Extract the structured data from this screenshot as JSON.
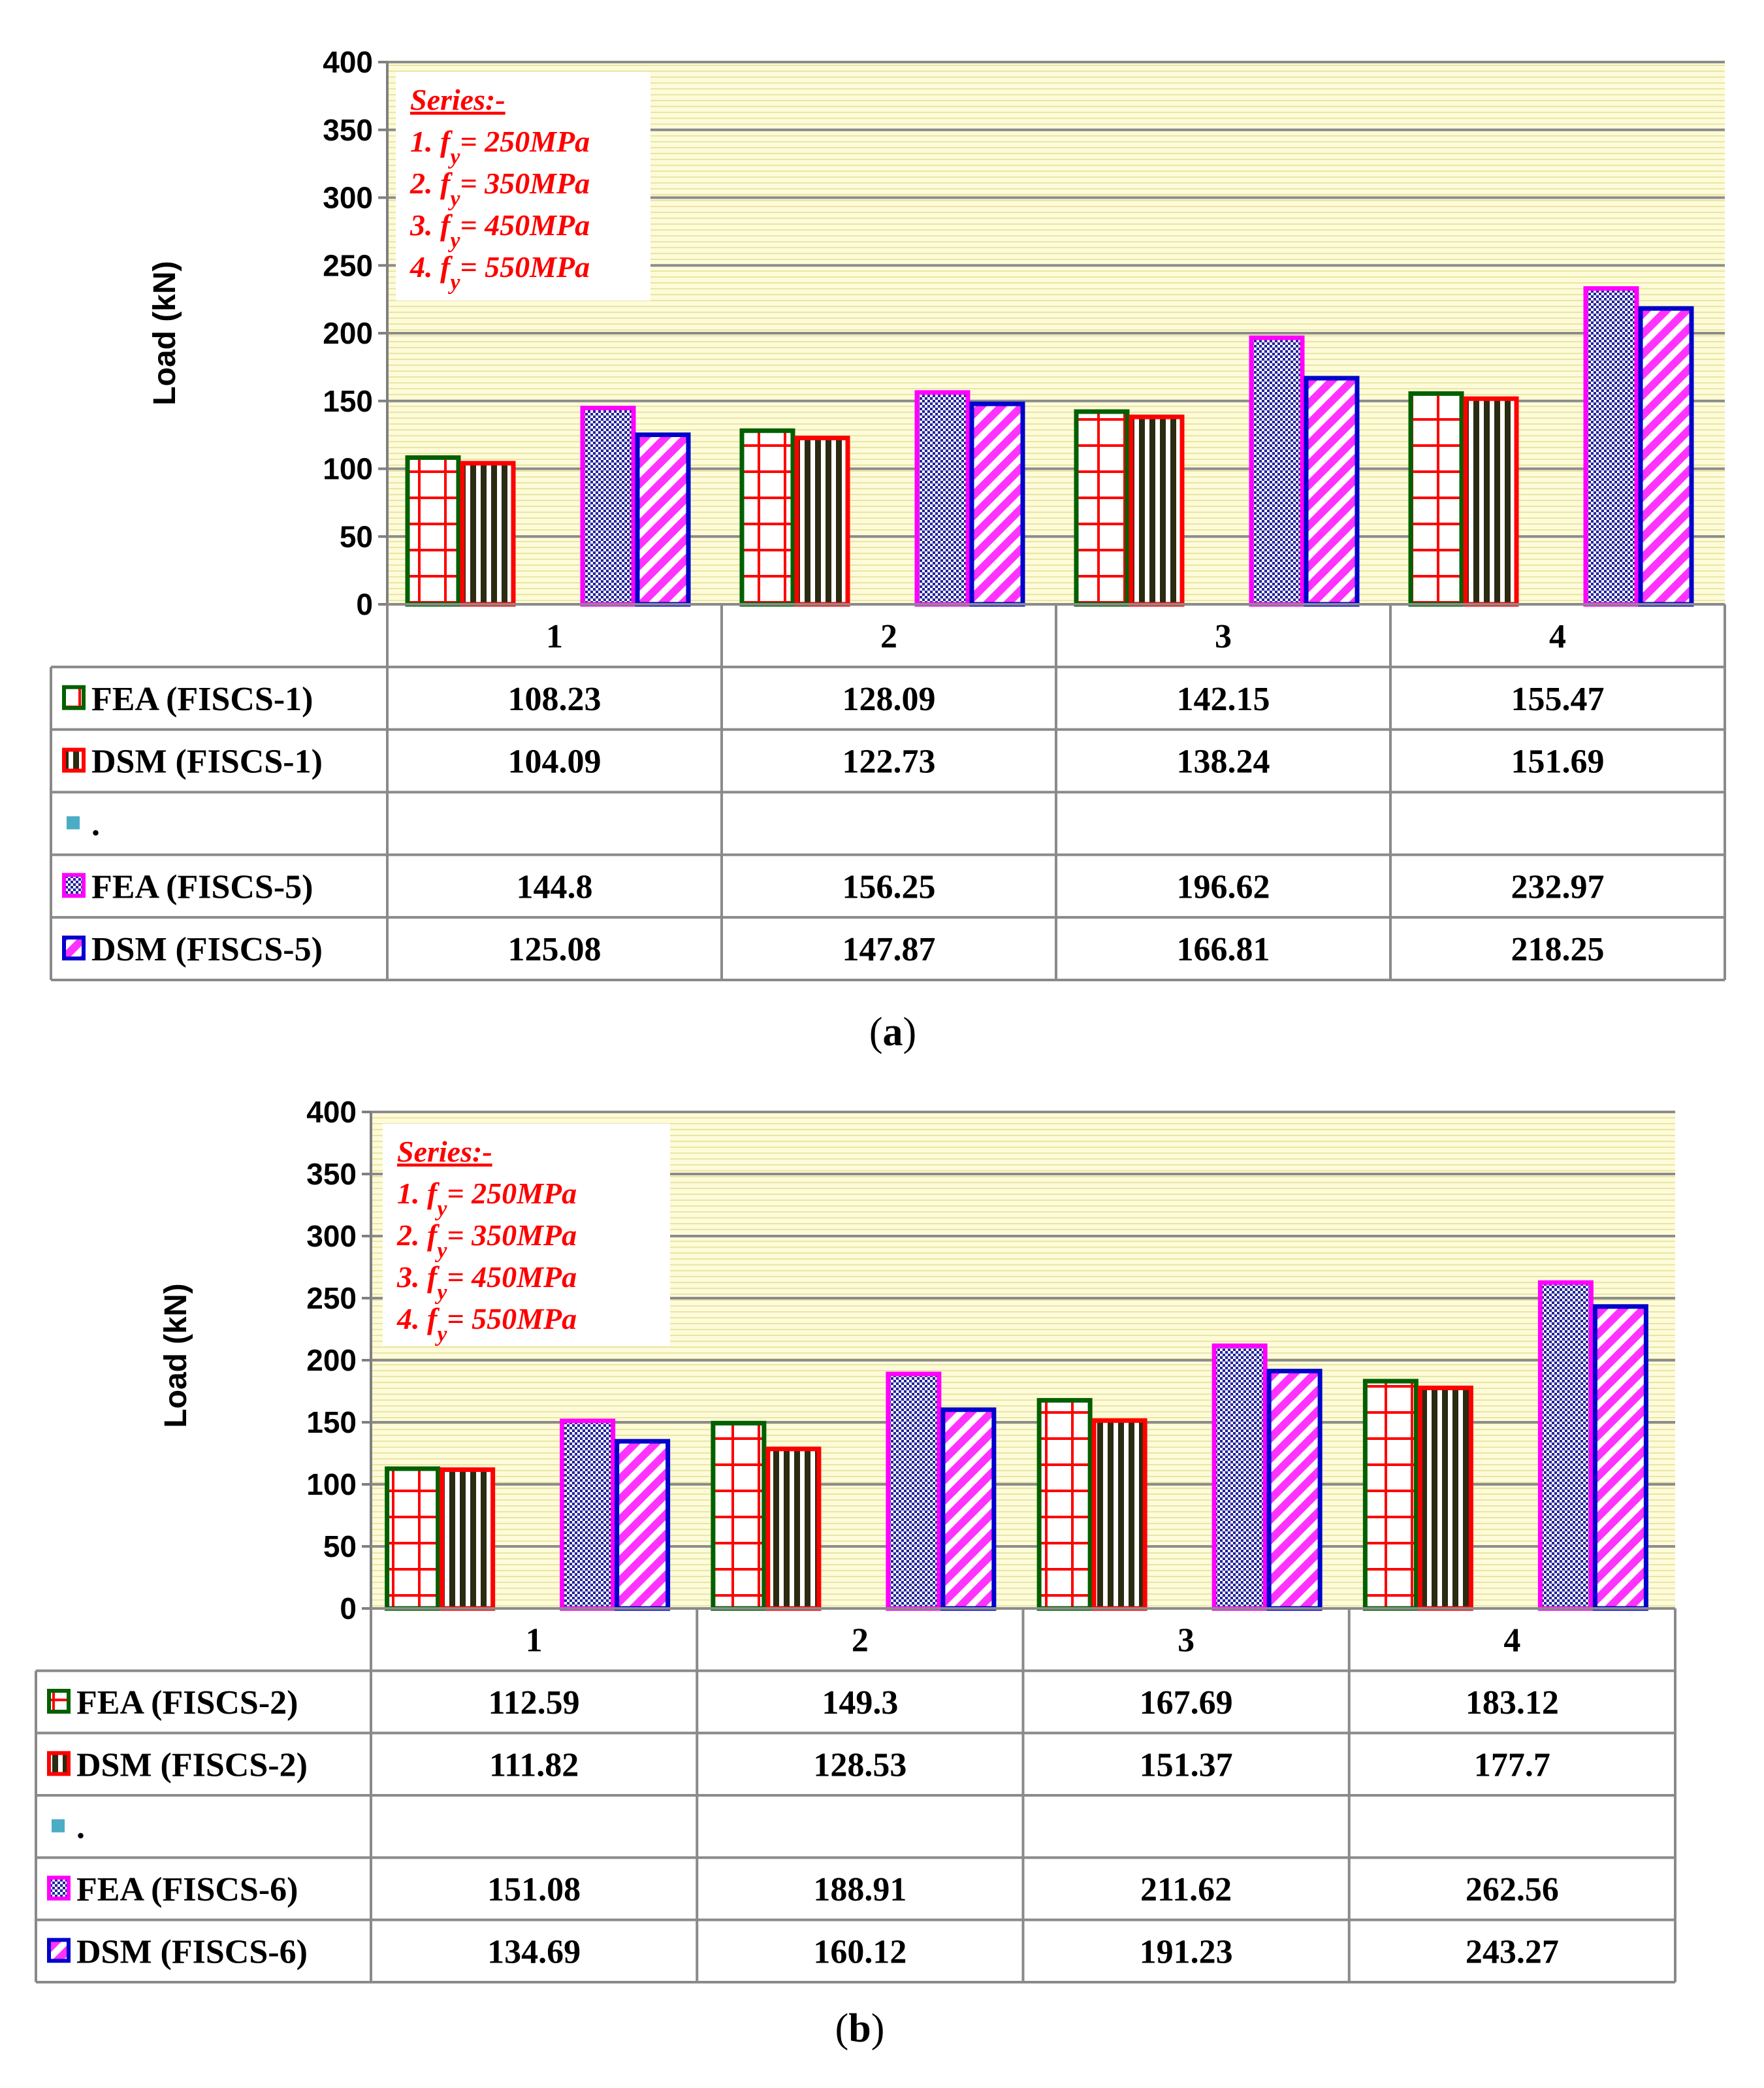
{
  "chart_data": [
    {
      "type": "bar",
      "caption_open": "(",
      "caption_letter": "a",
      "caption_close": ")",
      "ylabel": "Load (kN)",
      "ylim": [
        0,
        400
      ],
      "yticks": [
        0,
        50,
        100,
        150,
        200,
        250,
        300,
        350,
        400
      ],
      "categories": [
        "1",
        "2",
        "3",
        "4"
      ],
      "annotation": {
        "title": "Series:-",
        "lines": [
          {
            "prefix": "1. f",
            "sub": "y",
            "suffix": "= 250MPa"
          },
          {
            "prefix": "2. f",
            "sub": "y",
            "suffix": "= 350MPa"
          },
          {
            "prefix": "3. f",
            "sub": "y",
            "suffix": "= 450MPa"
          },
          {
            "prefix": "4. f",
            "sub": "y",
            "suffix": "= 550MPa"
          }
        ]
      },
      "series": [
        {
          "name": "FEA (FISCS-1)",
          "values": [
            108.23,
            128.09,
            142.15,
            155.47
          ],
          "display": [
            "108.23",
            "128.09",
            "142.15",
            "155.47"
          ],
          "pattern": "grid",
          "border": "#006000"
        },
        {
          "name": "DSM (FISCS-1)",
          "values": [
            104.09,
            122.73,
            138.24,
            151.69
          ],
          "display": [
            "104.09",
            "122.73",
            "138.24",
            "151.69"
          ],
          "pattern": "vstripe",
          "border": "#ff0000"
        },
        {
          "name": ".",
          "values": [
            null,
            null,
            null,
            null
          ],
          "display": [
            "",
            "",
            "",
            ""
          ],
          "pattern": "spacer",
          "border": "#4bacc6"
        },
        {
          "name": "FEA (FISCS-5)",
          "values": [
            144.8,
            156.25,
            196.62,
            232.97
          ],
          "display": [
            "144.8",
            "156.25",
            "196.62",
            "232.97"
          ],
          "pattern": "check",
          "border": "#ff00ff"
        },
        {
          "name": "DSM (FISCS-5)",
          "values": [
            125.08,
            147.87,
            166.81,
            218.25
          ],
          "display": [
            "125.08",
            "147.87",
            "166.81",
            "218.25"
          ],
          "pattern": "diag",
          "border": "#0000cc"
        }
      ]
    },
    {
      "type": "bar",
      "caption_open": "(",
      "caption_letter": "b",
      "caption_close": ")",
      "ylabel": "Load (kN)",
      "ylim": [
        0,
        400
      ],
      "yticks": [
        0,
        50,
        100,
        150,
        200,
        250,
        300,
        350,
        400
      ],
      "categories": [
        "1",
        "2",
        "3",
        "4"
      ],
      "annotation": {
        "title": "Series:-",
        "lines": [
          {
            "prefix": "1. f",
            "sub": "y",
            "suffix": "= 250MPa"
          },
          {
            "prefix": "2. f",
            "sub": "y",
            "suffix": "= 350MPa"
          },
          {
            "prefix": "3. f",
            "sub": "y",
            "suffix": "= 450MPa"
          },
          {
            "prefix": "4. f",
            "sub": "y",
            "suffix": "= 550MPa"
          }
        ]
      },
      "series": [
        {
          "name": "FEA (FISCS-2)",
          "values": [
            112.59,
            149.3,
            167.69,
            183.12
          ],
          "display": [
            "112.59",
            "149.3",
            "167.69",
            "183.12"
          ],
          "pattern": "grid",
          "border": "#006000"
        },
        {
          "name": "DSM (FISCS-2)",
          "values": [
            111.82,
            128.53,
            151.37,
            177.7
          ],
          "display": [
            "111.82",
            "128.53",
            "151.37",
            "177.7"
          ],
          "pattern": "vstripe",
          "border": "#ff0000"
        },
        {
          "name": ".",
          "values": [
            null,
            null,
            null,
            null
          ],
          "display": [
            "",
            "",
            "",
            ""
          ],
          "pattern": "spacer",
          "border": "#4bacc6"
        },
        {
          "name": "FEA (FISCS-6)",
          "values": [
            151.08,
            188.91,
            211.62,
            262.56
          ],
          "display": [
            "151.08",
            "188.91",
            "211.62",
            "262.56"
          ],
          "pattern": "check",
          "border": "#ff00ff"
        },
        {
          "name": "DSM (FISCS-6)",
          "values": [
            134.69,
            160.12,
            191.23,
            243.27
          ],
          "display": [
            "134.69",
            "160.12",
            "191.23",
            "243.27"
          ],
          "pattern": "diag",
          "border": "#0000cc"
        }
      ]
    }
  ],
  "colors": {
    "plot_bg": "#fdfbd9",
    "bg_line": "#e9e6a4",
    "gridline": "#8c8c8c",
    "grid_fill": "#ffffff",
    "grid_line": "#ff0000",
    "vstripe_a": "#2b2b12",
    "vstripe_b": "#ffffff",
    "check_a": "#23239a",
    "check_b": "#ffffff",
    "diag_a": "#ff33ff",
    "diag_b": "#ffffff",
    "spacer": "#4bacc6",
    "annotation": "#ff0000"
  }
}
